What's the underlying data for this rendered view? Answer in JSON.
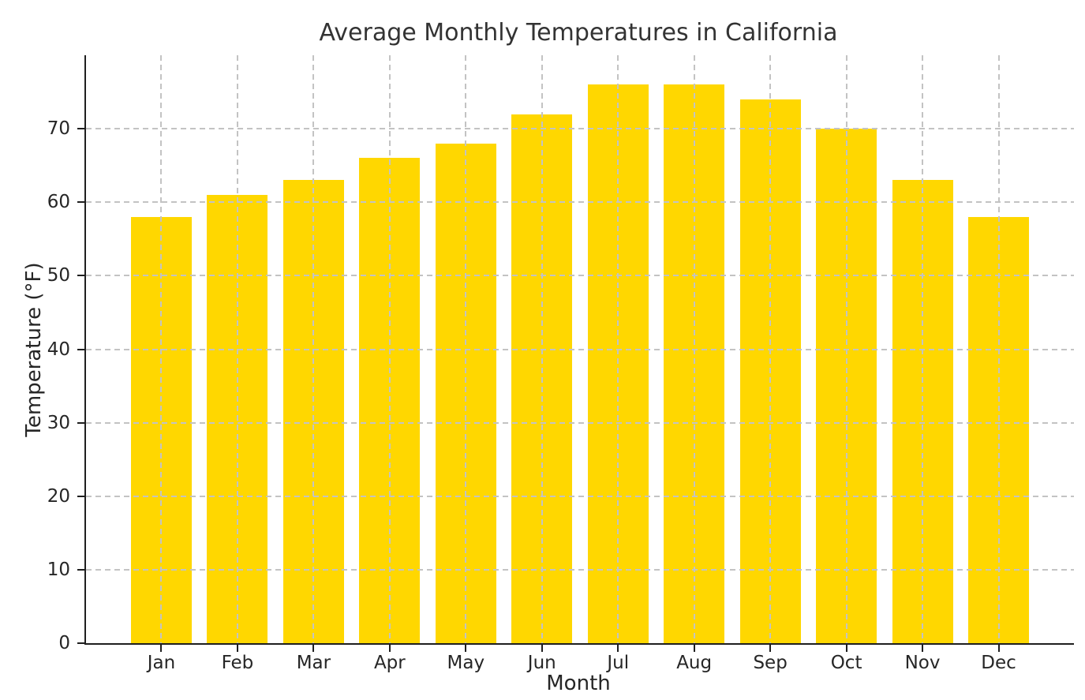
{
  "chart_data": {
    "type": "bar",
    "title": "Average Monthly Temperatures in California",
    "xlabel": "Month",
    "ylabel": "Temperature (°F)",
    "categories": [
      "Jan",
      "Feb",
      "Mar",
      "Apr",
      "May",
      "Jun",
      "Jul",
      "Aug",
      "Sep",
      "Oct",
      "Nov",
      "Dec"
    ],
    "values": [
      58,
      61,
      63,
      66,
      68,
      72,
      76,
      76,
      74,
      70,
      63,
      58
    ],
    "yticks": [
      0,
      10,
      20,
      30,
      40,
      50,
      60,
      70
    ],
    "ylim": [
      0,
      80
    ],
    "grid": true,
    "grid_style": "dashed",
    "grid_above_bars": true,
    "legend": "none",
    "bar_color": "#FFD700",
    "grid_color": "#c3c3c3",
    "axis_color": "#1f1f1f",
    "text_color": "#262626",
    "background_color": "#ffffff"
  }
}
